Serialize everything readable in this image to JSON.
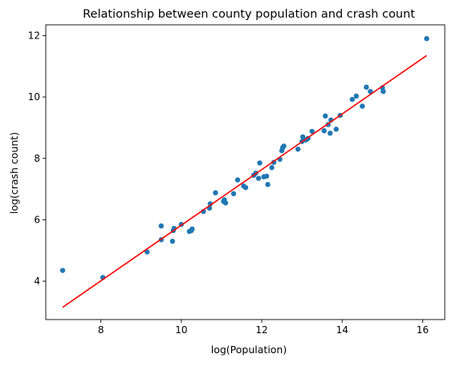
{
  "chart_data": {
    "type": "scatter",
    "title": "Relationship between county population and crash count",
    "xlabel": "log(Population)",
    "ylabel": "log(crash count)",
    "xlim": [
      6.63,
      16.55
    ],
    "ylim": [
      2.75,
      12.35
    ],
    "xticks": [
      8,
      10,
      12,
      14,
      16
    ],
    "yticks": [
      4,
      6,
      8,
      10,
      12
    ],
    "grid": false,
    "legend": "none",
    "colors": {
      "points": "#1f77b4",
      "fit_line": "#ff0000"
    },
    "series": [
      {
        "points": [
          [
            7.05,
            4.35
          ],
          [
            8.05,
            4.12
          ],
          [
            9.15,
            4.95
          ],
          [
            9.5,
            5.35
          ],
          [
            9.5,
            5.8
          ],
          [
            9.78,
            5.3
          ],
          [
            9.8,
            5.65
          ],
          [
            9.82,
            5.72
          ],
          [
            10.0,
            5.85
          ],
          [
            10.2,
            5.62
          ],
          [
            10.25,
            5.65
          ],
          [
            10.27,
            5.7
          ],
          [
            10.55,
            6.27
          ],
          [
            10.7,
            6.38
          ],
          [
            10.72,
            6.52
          ],
          [
            10.85,
            6.88
          ],
          [
            11.05,
            6.6
          ],
          [
            11.07,
            6.65
          ],
          [
            11.1,
            6.55
          ],
          [
            11.3,
            6.85
          ],
          [
            11.4,
            7.3
          ],
          [
            11.55,
            7.1
          ],
          [
            11.6,
            7.05
          ],
          [
            11.8,
            7.45
          ],
          [
            11.85,
            7.52
          ],
          [
            11.92,
            7.35
          ],
          [
            11.95,
            7.85
          ],
          [
            12.05,
            7.4
          ],
          [
            12.12,
            7.42
          ],
          [
            12.15,
            7.15
          ],
          [
            12.25,
            7.7
          ],
          [
            12.3,
            7.87
          ],
          [
            12.45,
            7.97
          ],
          [
            12.5,
            8.25
          ],
          [
            12.52,
            8.35
          ],
          [
            12.55,
            8.4
          ],
          [
            12.9,
            8.3
          ],
          [
            13.0,
            8.55
          ],
          [
            13.02,
            8.7
          ],
          [
            13.1,
            8.6
          ],
          [
            13.15,
            8.65
          ],
          [
            13.25,
            8.88
          ],
          [
            13.55,
            8.9
          ],
          [
            13.58,
            9.38
          ],
          [
            13.65,
            9.1
          ],
          [
            13.7,
            8.82
          ],
          [
            13.72,
            9.25
          ],
          [
            13.85,
            8.95
          ],
          [
            13.95,
            9.4
          ],
          [
            14.25,
            9.92
          ],
          [
            14.35,
            10.03
          ],
          [
            14.5,
            9.7
          ],
          [
            14.6,
            10.32
          ],
          [
            14.7,
            10.18
          ],
          [
            15.0,
            10.3
          ],
          [
            15.02,
            10.18
          ],
          [
            16.1,
            11.9
          ]
        ]
      }
    ],
    "fit_line": {
      "x": [
        7.05,
        16.1
      ],
      "y": [
        3.15,
        11.35
      ]
    }
  }
}
